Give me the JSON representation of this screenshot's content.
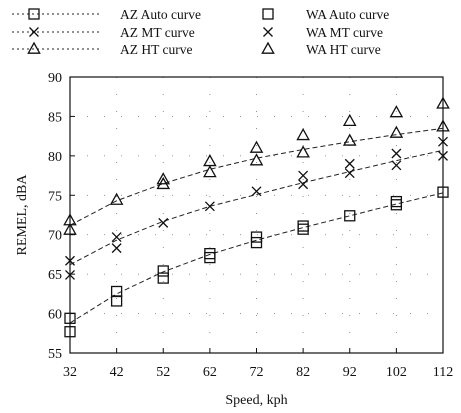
{
  "chart_data": {
    "type": "scatter",
    "xlabel": "Speed, kph",
    "ylabel": "REMEL, dBA",
    "xlim": [
      32,
      112
    ],
    "ylim": [
      55,
      90
    ],
    "x_ticks": [
      32,
      42,
      52,
      62,
      72,
      82,
      92,
      102,
      112
    ],
    "y_ticks": [
      55,
      60,
      65,
      70,
      75,
      80,
      85,
      90
    ],
    "grid": "dotted",
    "legend_position": "top",
    "series": [
      {
        "name": "AZ Auto curve",
        "kind": "curve",
        "marker": "square",
        "x": [
          32,
          42,
          52,
          62,
          72,
          82,
          92,
          102,
          112
        ],
        "y": [
          58.8,
          62.5,
          65.3,
          67.5,
          69.3,
          70.9,
          72.4,
          73.9,
          75.3
        ]
      },
      {
        "name": "AZ MT curve",
        "kind": "curve",
        "marker": "x",
        "x": [
          32,
          42,
          52,
          62,
          72,
          82,
          92,
          102,
          112
        ],
        "y": [
          66.2,
          69.3,
          71.7,
          73.6,
          75.1,
          76.6,
          78.0,
          79.4,
          80.7
        ]
      },
      {
        "name": "AZ HT curve",
        "kind": "curve",
        "marker": "triangle",
        "x": [
          32,
          42,
          52,
          62,
          72,
          82,
          92,
          102,
          112
        ],
        "y": [
          71.2,
          74.3,
          76.5,
          78.3,
          79.7,
          80.8,
          81.8,
          82.7,
          83.5
        ]
      },
      {
        "name": "WA Auto curve",
        "kind": "points",
        "marker": "square",
        "x": [
          32,
          32,
          42,
          42,
          52,
          52,
          62,
          62,
          72,
          72,
          82,
          82,
          92,
          102,
          102,
          112
        ],
        "y": [
          59.4,
          57.7,
          62.8,
          61.6,
          65.4,
          64.5,
          67.6,
          67.1,
          69.7,
          69.0,
          71.1,
          70.7,
          72.4,
          74.2,
          73.8,
          75.4
        ]
      },
      {
        "name": "WA MT curve",
        "kind": "points",
        "marker": "x",
        "x": [
          32,
          32,
          42,
          42,
          52,
          62,
          72,
          82,
          82,
          92,
          92,
          102,
          102,
          112,
          112
        ],
        "y": [
          66.7,
          64.9,
          69.7,
          68.3,
          71.5,
          73.6,
          75.5,
          77.5,
          76.4,
          79.0,
          77.8,
          80.3,
          78.8,
          81.8,
          80.0
        ]
      },
      {
        "name": "WA HT curve",
        "kind": "points",
        "marker": "triangle",
        "x": [
          32,
          32,
          42,
          52,
          52,
          62,
          62,
          72,
          72,
          82,
          82,
          92,
          92,
          102,
          102,
          112,
          112
        ],
        "y": [
          71.8,
          70.6,
          74.4,
          77.0,
          76.4,
          79.3,
          77.9,
          81.0,
          79.4,
          82.6,
          80.4,
          84.4,
          81.9,
          85.5,
          82.9,
          86.6,
          83.7
        ]
      }
    ]
  }
}
